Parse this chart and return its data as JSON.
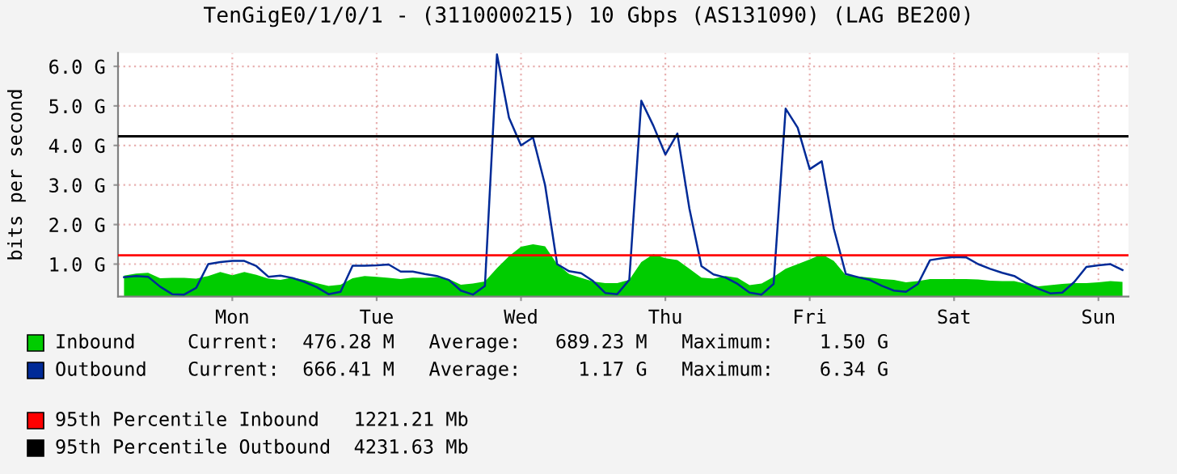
{
  "chart_data": {
    "type": "area",
    "title": "TenGigE0/1/0/1 - (3110000215) 10 Gbps (AS131090) (LAG BE200)",
    "ylabel": "bits per second",
    "categories": [
      null,
      null,
      null,
      null,
      null,
      null,
      null,
      null,
      null,
      "Mon",
      null,
      null,
      null,
      null,
      null,
      null,
      null,
      null,
      null,
      null,
      null,
      "Tue",
      null,
      null,
      null,
      null,
      null,
      null,
      null,
      null,
      null,
      null,
      null,
      "Wed",
      null,
      null,
      null,
      null,
      null,
      null,
      null,
      null,
      null,
      null,
      null,
      "Thu",
      null,
      null,
      null,
      null,
      null,
      null,
      null,
      null,
      null,
      null,
      null,
      "Fri",
      null,
      null,
      null,
      null,
      null,
      null,
      null,
      null,
      null,
      null,
      null,
      "Sat",
      null,
      null,
      null,
      null,
      null,
      null,
      null,
      null,
      null,
      null,
      null,
      "Sun",
      null,
      null
    ],
    "ylim": [
      0.18,
      6.34
    ],
    "yticks": [
      {
        "value": 1,
        "label": "1.0 G"
      },
      {
        "value": 2,
        "label": "2.0 G"
      },
      {
        "value": 3,
        "label": "3.0 G"
      },
      {
        "value": 4,
        "label": "4.0 G"
      },
      {
        "value": 5,
        "label": "5.0 G"
      },
      {
        "value": 6,
        "label": "6.0 G"
      }
    ],
    "grid": true,
    "legend": "bottom",
    "series": [
      {
        "name": "Inbound",
        "color": "#00cc00",
        "values": [
          0.71,
          0.76,
          0.78,
          0.64,
          0.65,
          0.65,
          0.63,
          0.7,
          0.8,
          0.72,
          0.8,
          0.73,
          0.63,
          0.6,
          0.66,
          0.6,
          0.52,
          0.45,
          0.48,
          0.64,
          0.7,
          0.68,
          0.65,
          0.62,
          0.66,
          0.65,
          0.67,
          0.62,
          0.48,
          0.51,
          0.56,
          0.9,
          1.2,
          1.44,
          1.5,
          1.45,
          1.0,
          0.75,
          0.65,
          0.56,
          0.52,
          0.52,
          0.6,
          1.05,
          1.25,
          1.15,
          1.1,
          0.88,
          0.66,
          0.63,
          0.7,
          0.65,
          0.47,
          0.51,
          0.68,
          0.88,
          1.0,
          1.12,
          1.25,
          1.08,
          0.72,
          0.69,
          0.66,
          0.62,
          0.6,
          0.54,
          0.57,
          0.62,
          0.62,
          0.62,
          0.62,
          0.61,
          0.58,
          0.57,
          0.57,
          0.5,
          0.44,
          0.47,
          0.5,
          0.52,
          0.52,
          0.54,
          0.57,
          0.55
        ]
      },
      {
        "name": "Outbound",
        "type": "line",
        "color": "#002a97",
        "values": [
          0.67,
          0.7,
          0.68,
          0.43,
          0.24,
          0.23,
          0.4,
          1.0,
          1.05,
          1.08,
          1.08,
          0.95,
          0.68,
          0.71,
          0.65,
          0.55,
          0.42,
          0.24,
          0.3,
          0.96,
          0.96,
          0.97,
          0.99,
          0.81,
          0.81,
          0.75,
          0.7,
          0.6,
          0.33,
          0.23,
          0.45,
          6.3,
          4.7,
          4.0,
          4.2,
          3.0,
          1.0,
          0.82,
          0.77,
          0.57,
          0.27,
          0.24,
          0.6,
          5.13,
          4.5,
          3.77,
          4.3,
          2.4,
          0.95,
          0.74,
          0.66,
          0.5,
          0.28,
          0.23,
          0.5,
          4.93,
          4.45,
          3.4,
          3.6,
          1.9,
          0.75,
          0.67,
          0.6,
          0.45,
          0.33,
          0.3,
          0.5,
          1.1,
          1.15,
          1.18,
          1.17,
          1.0,
          0.88,
          0.78,
          0.7,
          0.52,
          0.38,
          0.26,
          0.28,
          0.55,
          0.93,
          0.97,
          1.0,
          0.85
        ]
      }
    ],
    "ref_lines": [
      {
        "axis": "y",
        "value": 1.22121,
        "label": "95th Percentile Inbound   1221.21 Mb",
        "color": "#ff0000"
      },
      {
        "axis": "y",
        "value": 4.23163,
        "label": "95th Percentile Outbound  4231.63 Mb",
        "color": "#000000"
      }
    ],
    "annotations": [
      "Current:  476.28 M   Average:   689.23 M   Maximum:    1.50 G",
      "Current:  666.41 M   Average:     1.17 G   Maximum:    6.34 G"
    ]
  }
}
